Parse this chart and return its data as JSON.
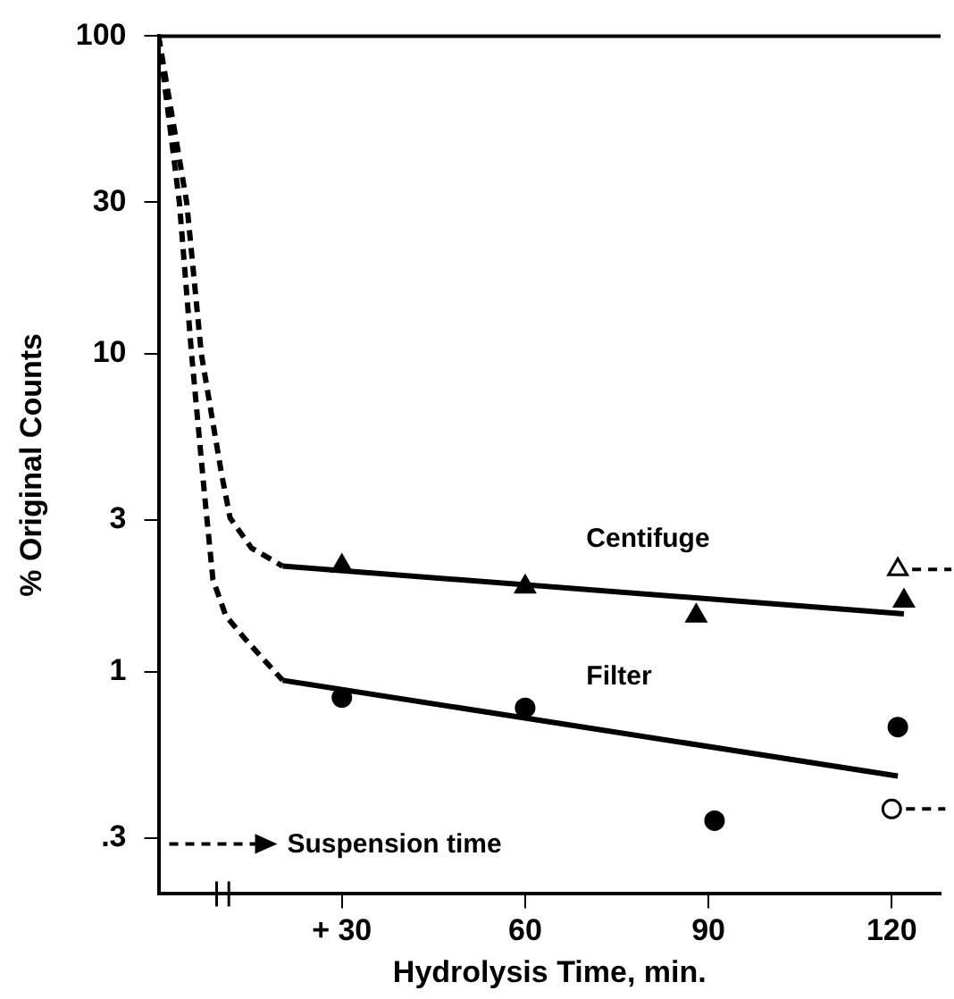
{
  "chart_data": {
    "type": "line",
    "xlabel": "Hydrolysis Time, min.",
    "ylabel": "% Original Counts",
    "log": "y",
    "grid": false,
    "legend": false,
    "xlim": [
      0,
      128
    ],
    "xticks": [
      {
        "value": 30,
        "label": "+ 30"
      },
      60,
      90,
      120
    ],
    "ylim": [
      0.2,
      100
    ],
    "yticks": [
      100,
      30,
      10,
      3,
      1,
      {
        "value": 0.3,
        "label": ".3"
      }
    ],
    "annotations": [
      "Suspension time"
    ],
    "series": [
      {
        "type": "line",
        "name": "Centifuge",
        "color": "#000000",
        "marker": "none",
        "line_style": "solid",
        "x": [
          20.3,
          122
        ],
        "values": [
          2.15,
          1.52
        ]
      },
      {
        "type": "line",
        "name": "Filter",
        "color": "#000000",
        "marker": "none",
        "line_style": "solid",
        "x": [
          20.3,
          121
        ],
        "values": [
          0.94,
          0.47
        ]
      },
      {
        "type": "line",
        "color": "#000000",
        "marker": "none",
        "line_style": "dashed",
        "x": [
          0,
          3.4,
          5.4,
          7.5,
          8.9,
          11,
          14.3,
          20.3
        ],
        "values": [
          100,
          30,
          10,
          3.65,
          1.95,
          1.5,
          1.26,
          0.94
        ]
      },
      {
        "type": "line",
        "color": "#000000",
        "marker": "none",
        "line_style": "dashed",
        "x": [
          0,
          4.6,
          7,
          10.3,
          11.7,
          15.2,
          20.3
        ],
        "values": [
          100,
          30,
          10,
          4.2,
          3.05,
          2.45,
          2.15
        ]
      },
      {
        "type": "scatter",
        "color": "#000000",
        "marker": "triangle",
        "x": [
          30,
          60,
          88,
          122
        ],
        "values": [
          2.15,
          1.85,
          1.5,
          1.67
        ]
      },
      {
        "type": "scatter",
        "color": "#000000",
        "marker": "circle",
        "x": [
          30,
          60,
          91,
          121
        ],
        "values": [
          0.83,
          0.77,
          0.34,
          0.67
        ]
      },
      {
        "type": "scatter",
        "color": "#000000",
        "marker": "triangle",
        "line_style": "dashed",
        "x": [
          121
        ],
        "values": [
          2.1
        ]
      },
      {
        "type": "scatter",
        "color": "#000000",
        "marker": "circle",
        "line_style": "dashed",
        "x": [
          120
        ],
        "values": [
          0.37
        ]
      }
    ]
  }
}
